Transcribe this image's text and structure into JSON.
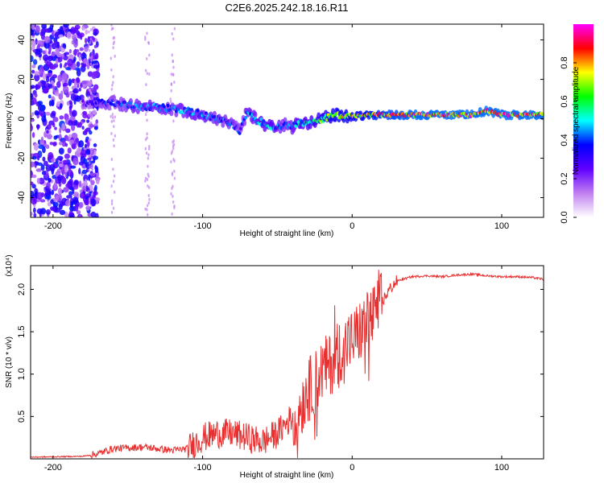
{
  "title": "C2E6.2025.242.18.16.R11",
  "chart_data": [
    {
      "type": "heatmap",
      "xlabel": "Height of straight line (km)",
      "ylabel": "Frequency (Hz)",
      "xlim": [
        -215,
        128
      ],
      "ylim": [
        -50,
        48
      ],
      "x_ticks": [
        -200,
        -100,
        0,
        100
      ],
      "x_tick_labels": [
        "-200",
        "-100",
        "0",
        "100"
      ],
      "y_ticks": [
        40,
        20,
        0,
        -20,
        -40
      ],
      "y_tick_labels": [
        "40",
        "20",
        "0",
        "-20",
        "-40"
      ],
      "colorbar": {
        "label": "Normalized spectral amplitude",
        "range": [
          0.0,
          1.0
        ],
        "ticks": [
          0.0,
          0.2,
          0.4,
          0.6,
          0.8
        ],
        "tick_labels": [
          "0.0",
          "0.2",
          "0.4",
          "0.6",
          "0.8"
        ],
        "colors": [
          "#ffffff",
          "#c080f0",
          "#6000ff",
          "#0000ff",
          "#00ffff",
          "#00ff00",
          "#ffff00",
          "#ff0000",
          "#ff00ff"
        ]
      },
      "ridge": {
        "x": [
          -180,
          -170,
          -160,
          -150,
          -140,
          -130,
          -120,
          -110,
          -100,
          -90,
          -80,
          -75,
          -70,
          -65,
          -60,
          -55,
          -50,
          -45,
          -40,
          -35,
          -30,
          -20,
          -10,
          0,
          10,
          20,
          40,
          60,
          80,
          90,
          100,
          110,
          128
        ],
        "freq": [
          8,
          9,
          8,
          7,
          6,
          6,
          5,
          4,
          2,
          0,
          -3,
          -6,
          4,
          0,
          -2,
          -4,
          -4,
          -3,
          -4,
          -2,
          -2,
          0,
          2,
          1,
          2,
          2,
          2,
          2,
          2,
          4,
          2,
          2,
          2
        ],
        "amplitude": [
          0.3,
          0.4,
          0.4,
          0.45,
          0.5,
          0.5,
          0.45,
          0.5,
          0.5,
          0.45,
          0.45,
          0.4,
          0.5,
          0.5,
          0.55,
          0.6,
          0.5,
          0.45,
          0.5,
          0.55,
          0.6,
          0.7,
          0.8,
          0.8,
          0.85,
          0.9,
          0.95,
          0.95,
          0.95,
          0.95,
          0.95,
          0.95,
          0.95
        ]
      }
    },
    {
      "type": "line",
      "xlabel": "Height of straight line (km)",
      "ylabel": "SNR (10 * v/v)",
      "y_scale_label": "(x10⁴)",
      "xlim": [
        -215,
        128
      ],
      "ylim": [
        0,
        2.28
      ],
      "x_ticks": [
        -200,
        -100,
        0,
        100
      ],
      "x_tick_labels": [
        "-200",
        "-100",
        "0",
        "100"
      ],
      "y_ticks": [
        0.5,
        1.0,
        1.5,
        2.0
      ],
      "y_tick_labels": [
        "0.5",
        "1.0",
        "1.5",
        "2.0"
      ],
      "color": "#e83030",
      "x": [
        -215,
        -180,
        -170,
        -160,
        -150,
        -140,
        -130,
        -120,
        -110,
        -100,
        -90,
        -80,
        -70,
        -60,
        -50,
        -45,
        -40,
        -35,
        -30,
        -25,
        -20,
        -15,
        -10,
        -5,
        0,
        5,
        10,
        15,
        20,
        25,
        30,
        40,
        50,
        60,
        70,
        80,
        90,
        100,
        110,
        120,
        128
      ],
      "y": [
        0.02,
        0.03,
        0.06,
        0.12,
        0.13,
        0.14,
        0.12,
        0.1,
        0.12,
        0.25,
        0.3,
        0.3,
        0.25,
        0.2,
        0.3,
        0.4,
        0.5,
        0.6,
        0.8,
        0.9,
        1.05,
        1.1,
        1.25,
        1.35,
        1.4,
        1.5,
        1.6,
        1.7,
        1.85,
        2.0,
        2.1,
        2.15,
        2.16,
        2.15,
        2.17,
        2.18,
        2.16,
        2.15,
        2.15,
        2.14,
        2.12
      ]
    }
  ]
}
